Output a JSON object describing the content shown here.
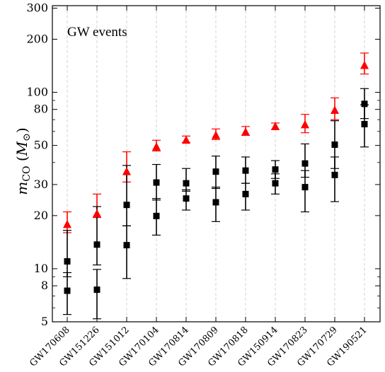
{
  "chart_data": {
    "type": "scatter",
    "annotation": "GW events",
    "ylabel": "m",
    "ylabel_sub": "CO",
    "ylabel_unit_open": " (",
    "ylabel_unit": "M",
    "ylabel_unit_sub": "⊙",
    "ylabel_unit_close": ")",
    "yscale": "log",
    "ylim": [
      5,
      310
    ],
    "yticks": [
      5,
      8,
      10,
      20,
      30,
      50,
      80,
      100,
      200,
      300
    ],
    "grid": "vertical dashed",
    "categories": [
      "GW170608",
      "GW151226",
      "GW151012",
      "GW170104",
      "GW170814",
      "GW170809",
      "GW170818",
      "GW150914",
      "GW170823",
      "GW170729",
      "GW190521"
    ],
    "series": [
      {
        "marker": "triangle",
        "color": "#ff0000",
        "points": [
          {
            "y": 17.8,
            "lo": 16.0,
            "hi": 21.0
          },
          {
            "y": 20.5,
            "lo": 19.5,
            "hi": 26.5
          },
          {
            "y": 35.5,
            "lo": 31.0,
            "hi": 46.0
          },
          {
            "y": 49.0,
            "lo": 46.5,
            "hi": 53.5
          },
          {
            "y": 53.5,
            "lo": 52.0,
            "hi": 56.5
          },
          {
            "y": 57.0,
            "lo": 54.0,
            "hi": 62.0
          },
          {
            "y": 59.5,
            "lo": 57.0,
            "hi": 64.0
          },
          {
            "y": 64.0,
            "lo": 61.5,
            "hi": 67.0
          },
          {
            "y": 65.5,
            "lo": 59.0,
            "hi": 75.0
          },
          {
            "y": 79.0,
            "lo": 70.0,
            "hi": 93.0
          },
          {
            "y": 142.0,
            "lo": 127.0,
            "hi": 167.0
          }
        ]
      },
      {
        "marker": "square",
        "color": "#000000",
        "points": [
          {
            "y": 11.0,
            "lo": 9.0,
            "hi": 16.5
          },
          {
            "y": 13.7,
            "lo": 10.5,
            "hi": 22.5
          },
          {
            "y": 23.0,
            "lo": 17.5,
            "hi": 38.5
          },
          {
            "y": 30.8,
            "lo": 24.5,
            "hi": 39.0
          },
          {
            "y": 30.5,
            "lo": 27.5,
            "hi": 37.0
          },
          {
            "y": 35.5,
            "lo": 28.5,
            "hi": 43.5
          },
          {
            "y": 36.0,
            "lo": 30.5,
            "hi": 43.0
          },
          {
            "y": 36.5,
            "lo": 32.5,
            "hi": 41.0
          },
          {
            "y": 39.5,
            "lo": 33.0,
            "hi": 51.0
          },
          {
            "y": 50.5,
            "lo": 37.0,
            "hi": 69.0
          },
          {
            "y": 86.0,
            "lo": 71.0,
            "hi": 105.0
          }
        ]
      },
      {
        "marker": "square",
        "color": "#000000",
        "points": [
          {
            "y": 7.5,
            "lo": 5.5,
            "hi": 9.5
          },
          {
            "y": 7.6,
            "lo": 5.2,
            "hi": 9.9
          },
          {
            "y": 13.6,
            "lo": 8.8,
            "hi": 17.5
          },
          {
            "y": 19.9,
            "lo": 15.5,
            "hi": 25.0
          },
          {
            "y": 25.0,
            "lo": 21.5,
            "hi": 28.0
          },
          {
            "y": 23.8,
            "lo": 18.5,
            "hi": 29.0
          },
          {
            "y": 26.5,
            "lo": 21.5,
            "hi": 30.5
          },
          {
            "y": 30.5,
            "lo": 26.5,
            "hi": 34.5
          },
          {
            "y": 29.0,
            "lo": 21.0,
            "hi": 36.0
          },
          {
            "y": 34.0,
            "lo": 24.0,
            "hi": 43.0
          },
          {
            "y": 66.0,
            "lo": 49.0,
            "hi": 85.0
          }
        ]
      }
    ]
  }
}
